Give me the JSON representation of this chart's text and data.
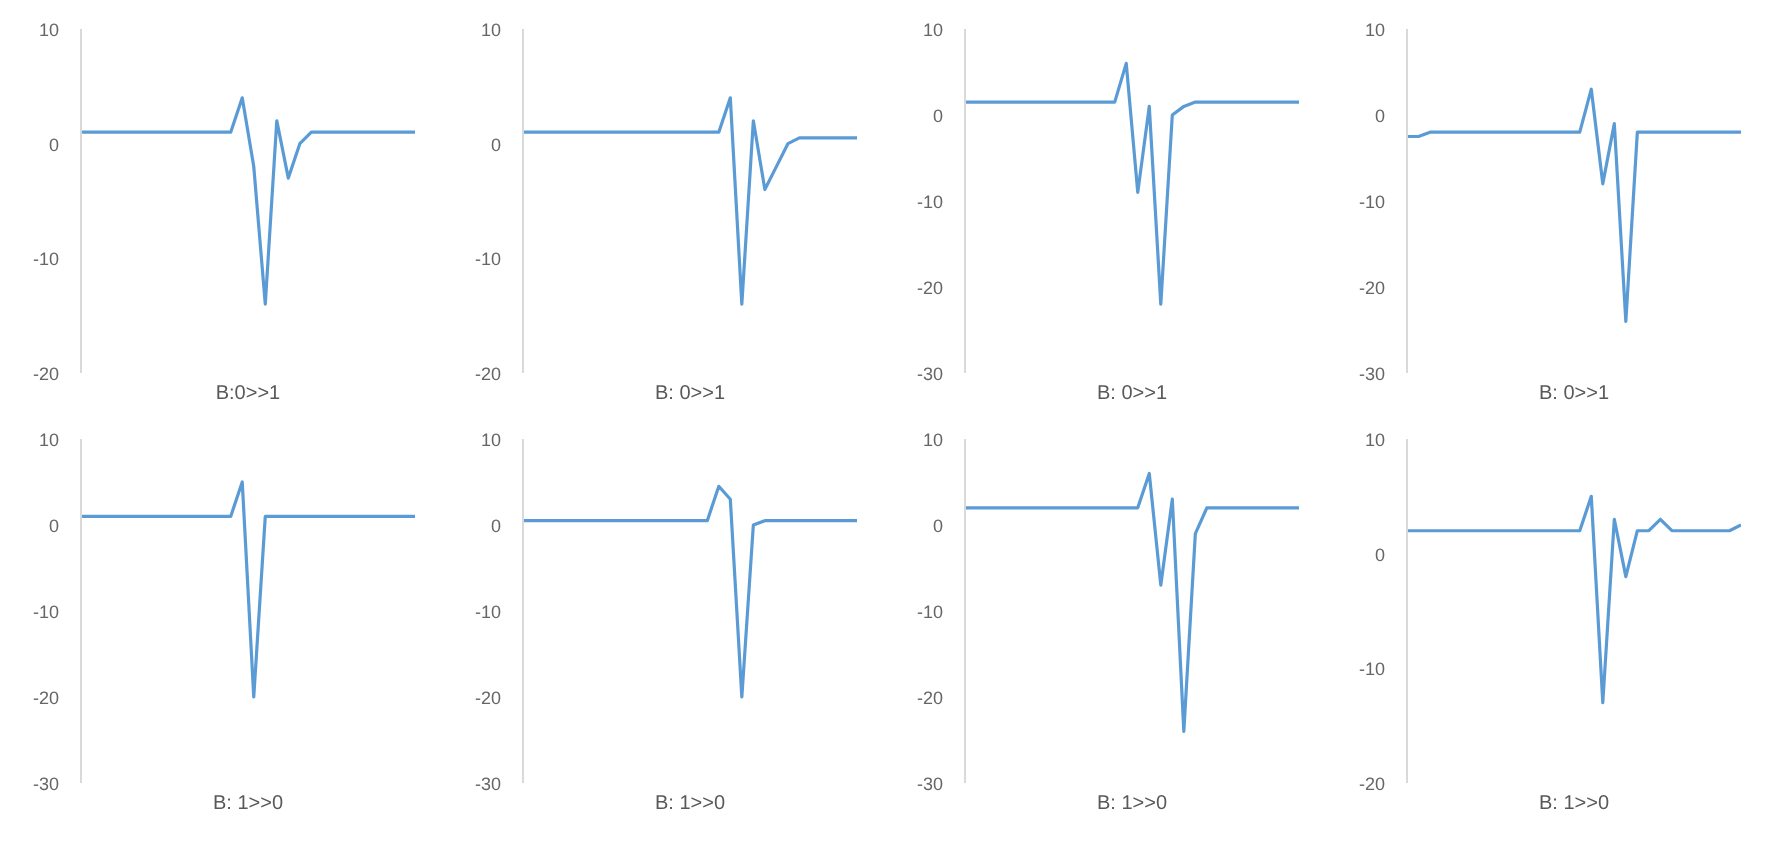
{
  "chart_data": [
    {
      "type": "line",
      "xlabel": "B:0>>1",
      "tick_labels": "y",
      "ylim": [
        -20,
        10
      ],
      "yticks": [
        -20,
        -10,
        0,
        10
      ],
      "categories": [
        null,
        null,
        null,
        null,
        null,
        null,
        null,
        null,
        null,
        null,
        null,
        null,
        null,
        null,
        null,
        null,
        null,
        null,
        null,
        null,
        null,
        null,
        null,
        null,
        null,
        null,
        null,
        null,
        null,
        null
      ],
      "series": [
        {
          "color": "#5b9bd5",
          "values": [
            1,
            1,
            1,
            1,
            1,
            1,
            1,
            1,
            1,
            1,
            1,
            1,
            1,
            1,
            4,
            -2,
            -14,
            2,
            -3,
            0,
            1,
            1,
            1,
            1,
            1,
            1,
            1,
            1,
            1,
            1
          ]
        }
      ]
    },
    {
      "type": "line",
      "xlabel": "B: 0>>1",
      "tick_labels": "y",
      "ylim": [
        -20,
        10
      ],
      "yticks": [
        -20,
        -10,
        0,
        10
      ],
      "categories": [
        null,
        null,
        null,
        null,
        null,
        null,
        null,
        null,
        null,
        null,
        null,
        null,
        null,
        null,
        null,
        null,
        null,
        null,
        null,
        null,
        null,
        null,
        null,
        null,
        null,
        null,
        null,
        null,
        null,
        null
      ],
      "series": [
        {
          "color": "#5b9bd5",
          "values": [
            1,
            1,
            1,
            1,
            1,
            1,
            1,
            1,
            1,
            1,
            1,
            1,
            1,
            1,
            1,
            1,
            1,
            1,
            4,
            -14,
            2,
            -4,
            -2,
            0,
            0.5,
            0.5,
            0.5,
            0.5,
            0.5,
            0.5
          ]
        }
      ]
    },
    {
      "type": "line",
      "xlabel": "B: 0>>1",
      "tick_labels": "y",
      "ylim": [
        -30,
        10
      ],
      "yticks": [
        -30,
        -20,
        -10,
        0,
        10
      ],
      "categories": [
        null,
        null,
        null,
        null,
        null,
        null,
        null,
        null,
        null,
        null,
        null,
        null,
        null,
        null,
        null,
        null,
        null,
        null,
        null,
        null,
        null,
        null,
        null,
        null,
        null,
        null,
        null,
        null,
        null,
        null
      ],
      "series": [
        {
          "color": "#5b9bd5",
          "values": [
            1.5,
            1.5,
            1.5,
            1.5,
            1.5,
            1.5,
            1.5,
            1.5,
            1.5,
            1.5,
            1.5,
            1.5,
            1.5,
            1.5,
            6,
            -9,
            1,
            -22,
            0,
            1,
            1.5,
            1.5,
            1.5,
            1.5,
            1.5,
            1.5,
            1.5,
            1.5,
            1.5,
            1.5
          ]
        }
      ]
    },
    {
      "type": "line",
      "xlabel": "B: 0>>1",
      "tick_labels": "y",
      "ylim": [
        -30,
        10
      ],
      "yticks": [
        -30,
        -20,
        -10,
        0,
        10
      ],
      "categories": [
        null,
        null,
        null,
        null,
        null,
        null,
        null,
        null,
        null,
        null,
        null,
        null,
        null,
        null,
        null,
        null,
        null,
        null,
        null,
        null,
        null,
        null,
        null,
        null,
        null,
        null,
        null,
        null,
        null,
        null
      ],
      "series": [
        {
          "color": "#5b9bd5",
          "values": [
            -2.5,
            -2.5,
            -2,
            -2,
            -2,
            -2,
            -2,
            -2,
            -2,
            -2,
            -2,
            -2,
            -2,
            -2,
            -2,
            -2,
            3,
            -8,
            -1,
            -24,
            -2,
            -2,
            -2,
            -2,
            -2,
            -2,
            -2,
            -2,
            -2,
            -2
          ]
        }
      ]
    },
    {
      "type": "line",
      "xlabel": "B: 1>>0",
      "tick_labels": "y",
      "ylim": [
        -30,
        10
      ],
      "yticks": [
        -30,
        -20,
        -10,
        0,
        10
      ],
      "categories": [
        null,
        null,
        null,
        null,
        null,
        null,
        null,
        null,
        null,
        null,
        null,
        null,
        null,
        null,
        null,
        null,
        null,
        null,
        null,
        null,
        null,
        null,
        null,
        null,
        null,
        null,
        null,
        null,
        null,
        null
      ],
      "series": [
        {
          "color": "#5b9bd5",
          "values": [
            1,
            1,
            1,
            1,
            1,
            1,
            1,
            1,
            1,
            1,
            1,
            1,
            1,
            1,
            5,
            -20,
            1,
            1,
            1,
            1,
            1,
            1,
            1,
            1,
            1,
            1,
            1,
            1,
            1,
            1
          ]
        }
      ]
    },
    {
      "type": "line",
      "xlabel": "B: 1>>0",
      "tick_labels": "y",
      "ylim": [
        -30,
        10
      ],
      "yticks": [
        -30,
        -20,
        -10,
        0,
        10
      ],
      "categories": [
        null,
        null,
        null,
        null,
        null,
        null,
        null,
        null,
        null,
        null,
        null,
        null,
        null,
        null,
        null,
        null,
        null,
        null,
        null,
        null,
        null,
        null,
        null,
        null,
        null,
        null,
        null,
        null,
        null,
        null
      ],
      "series": [
        {
          "color": "#5b9bd5",
          "values": [
            0.5,
            0.5,
            0.5,
            0.5,
            0.5,
            0.5,
            0.5,
            0.5,
            0.5,
            0.5,
            0.5,
            0.5,
            0.5,
            0.5,
            0.5,
            0.5,
            0.5,
            4.5,
            3,
            -20,
            0,
            0.5,
            0.5,
            0.5,
            0.5,
            0.5,
            0.5,
            0.5,
            0.5,
            0.5
          ]
        }
      ]
    },
    {
      "type": "line",
      "xlabel": "B: 1>>0",
      "tick_labels": "y",
      "ylim": [
        -30,
        10
      ],
      "yticks": [
        -30,
        -20,
        -10,
        0,
        10
      ],
      "categories": [
        null,
        null,
        null,
        null,
        null,
        null,
        null,
        null,
        null,
        null,
        null,
        null,
        null,
        null,
        null,
        null,
        null,
        null,
        null,
        null,
        null,
        null,
        null,
        null,
        null,
        null,
        null,
        null,
        null,
        null
      ],
      "series": [
        {
          "color": "#5b9bd5",
          "values": [
            2,
            2,
            2,
            2,
            2,
            2,
            2,
            2,
            2,
            2,
            2,
            2,
            2,
            2,
            2,
            2,
            6,
            -7,
            3,
            -24,
            -1,
            2,
            2,
            2,
            2,
            2,
            2,
            2,
            2,
            2
          ]
        }
      ]
    },
    {
      "type": "line",
      "xlabel": "B: 1>>0",
      "tick_labels": "y",
      "ylim": [
        -20,
        10
      ],
      "yticks": [
        -20,
        -10,
        0,
        10
      ],
      "categories": [
        null,
        null,
        null,
        null,
        null,
        null,
        null,
        null,
        null,
        null,
        null,
        null,
        null,
        null,
        null,
        null,
        null,
        null,
        null,
        null,
        null,
        null,
        null,
        null,
        null,
        null,
        null,
        null,
        null,
        null
      ],
      "series": [
        {
          "color": "#5b9bd5",
          "values": [
            2,
            2,
            2,
            2,
            2,
            2,
            2,
            2,
            2,
            2,
            2,
            2,
            2,
            2,
            2,
            2,
            5,
            -13,
            3,
            -2,
            2,
            2,
            3,
            2,
            2,
            2,
            2,
            2,
            2,
            2.5
          ]
        }
      ]
    }
  ]
}
